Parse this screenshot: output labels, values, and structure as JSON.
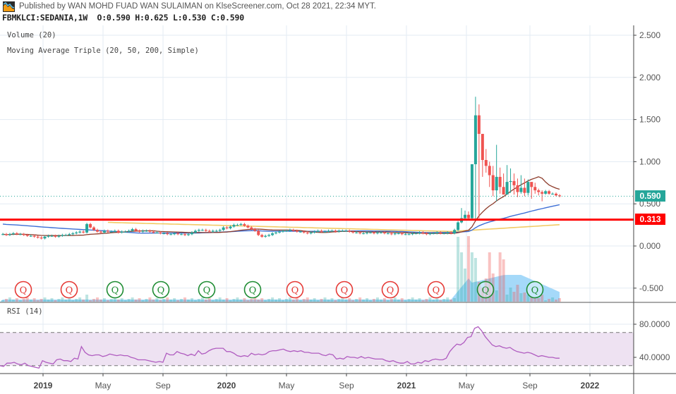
{
  "header": {
    "publisher_text": "Published by WAN MOHD FUAD WAN SULAIMAN on KlseScreener.com, Oct 28 2021, 22:34 MYT.",
    "symbol": "FBMKLCI:SEDANIA,1W",
    "ohlc": "O:0.590 H:0.625 L:0.530 C:0.590"
  },
  "legend": {
    "volume": "Volume (20)",
    "moving_average": "Moving Average Triple (20, 50, 200, Simple)",
    "rsi": "RSI (14)"
  },
  "price_axis": {
    "ticks": [
      "2.500",
      "2.000",
      "1.500",
      "1.000",
      "0.500",
      "0.000",
      "-0.500"
    ],
    "last_price_tag": "0.590",
    "support_tag": "0.313"
  },
  "rsi_axis": {
    "ticks": [
      "80.0000",
      "40.0000"
    ]
  },
  "time_axis": {
    "ticks": [
      {
        "label": "2019",
        "year": true
      },
      {
        "label": "May",
        "year": false
      },
      {
        "label": "Sep",
        "year": false
      },
      {
        "label": "2020",
        "year": true
      },
      {
        "label": "May",
        "year": false
      },
      {
        "label": "Sep",
        "year": false
      },
      {
        "label": "2021",
        "year": true
      },
      {
        "label": "May",
        "year": false
      },
      {
        "label": "Sep",
        "year": false
      },
      {
        "label": "2022",
        "year": true
      }
    ]
  },
  "earnings_markers": [
    {
      "label": "Q",
      "type": "negative"
    },
    {
      "label": "Q",
      "type": "negative"
    },
    {
      "label": "Q",
      "type": "positive"
    },
    {
      "label": "Q",
      "type": "positive"
    },
    {
      "label": "Q",
      "type": "positive"
    },
    {
      "label": "Q",
      "type": "positive"
    },
    {
      "label": "Q",
      "type": "negative"
    },
    {
      "label": "Q",
      "type": "negative"
    },
    {
      "label": "Q",
      "type": "negative"
    },
    {
      "label": "Q",
      "type": "negative"
    },
    {
      "label": "Q",
      "type": "positive"
    },
    {
      "label": "Q",
      "type": "positive"
    }
  ],
  "colors": {
    "up": "#26a69a",
    "down": "#ef5350",
    "ma20": "#8d3b2a",
    "ma50": "#3d6fd6",
    "ma200": "#f0c24a",
    "support_line": "#ff0000",
    "rsi_line": "#b05cc0",
    "rsi_band": "#eee2f2",
    "grid": "#e3ebf3",
    "last_price": "#26a69a",
    "volume_ma_area": "#8fd0f7"
  },
  "chart_data": [
    {
      "type": "candlestick",
      "title": "FBMKLCI:SEDANIA,1W",
      "timeframe": "1W",
      "last_bar": {
        "open": 0.59,
        "high": 0.625,
        "low": 0.53,
        "close": 0.59
      },
      "ylim": [
        -0.65,
        2.6
      ],
      "y_ticks": [
        2.5,
        2.0,
        1.5,
        1.0,
        0.5,
        0.0,
        -0.5
      ],
      "x_ticks": [
        "2019",
        "May",
        "Sep",
        "2020",
        "May",
        "Sep",
        "2021",
        "May",
        "Sep",
        "2022"
      ],
      "horizontal_lines": [
        {
          "value": 0.313,
          "label": "0.313",
          "color": "#ff0000",
          "note": "support/resistance line"
        },
        {
          "value": 0.59,
          "label": "0.590",
          "color": "#26a69a",
          "style": "dotted",
          "note": "last price"
        }
      ],
      "price_series_close": [
        0.14,
        0.13,
        0.14,
        0.15,
        0.14,
        0.14,
        0.13,
        0.12,
        0.12,
        0.11,
        0.1,
        0.09,
        0.11,
        0.12,
        0.12,
        0.11,
        0.12,
        0.13,
        0.13,
        0.14,
        0.15,
        0.16,
        0.17,
        0.16,
        0.26,
        0.22,
        0.19,
        0.17,
        0.16,
        0.18,
        0.17,
        0.17,
        0.18,
        0.16,
        0.17,
        0.17,
        0.18,
        0.2,
        0.18,
        0.17,
        0.18,
        0.18,
        0.17,
        0.16,
        0.16,
        0.15,
        0.15,
        0.14,
        0.14,
        0.15,
        0.14,
        0.14,
        0.13,
        0.14,
        0.16,
        0.18,
        0.19,
        0.19,
        0.18,
        0.17,
        0.18,
        0.18,
        0.19,
        0.22,
        0.21,
        0.23,
        0.25,
        0.25,
        0.26,
        0.24,
        0.22,
        0.2,
        0.18,
        0.13,
        0.11,
        0.12,
        0.13,
        0.15,
        0.16,
        0.17,
        0.18,
        0.18,
        0.19,
        0.18,
        0.17,
        0.17,
        0.16,
        0.15,
        0.16,
        0.17,
        0.18,
        0.17,
        0.17,
        0.18,
        0.18,
        0.17,
        0.18,
        0.18,
        0.18,
        0.17,
        0.16,
        0.16,
        0.15,
        0.15,
        0.16,
        0.16,
        0.15,
        0.16,
        0.16,
        0.15,
        0.15,
        0.14,
        0.15,
        0.15,
        0.14,
        0.14,
        0.14,
        0.15,
        0.15,
        0.16,
        0.15,
        0.14,
        0.15,
        0.15,
        0.16,
        0.15,
        0.15,
        0.16,
        0.15,
        0.19,
        0.28,
        0.33,
        0.37,
        0.33,
        0.97,
        1.55,
        1.33,
        1.02,
        0.95,
        0.84,
        0.66,
        0.82,
        0.7,
        0.61,
        0.76,
        0.77,
        0.72,
        0.64,
        0.69,
        0.63,
        0.76,
        0.7,
        0.66,
        0.64,
        0.62,
        0.65,
        0.62,
        0.62,
        0.6,
        0.59
      ],
      "moving_averages": [
        {
          "name": "MA 20",
          "color": "#8d3b2a",
          "last_value": 0.7,
          "peak_value": 0.82
        },
        {
          "name": "MA 50",
          "color": "#3d6fd6",
          "last_value": 0.45
        },
        {
          "name": "MA 200",
          "color": "#f0c24a",
          "last_value": 0.24
        }
      ],
      "notable": {
        "all_time_high_wick": 1.77,
        "spike_period": "May 2021"
      }
    },
    {
      "type": "bar",
      "title": "Volume (20)",
      "note": "volume histogram with 20-period MA area; spike around May 2021"
    },
    {
      "type": "line",
      "title": "RSI (14)",
      "ylim": [
        20,
        95
      ],
      "y_ticks": [
        80,
        40
      ],
      "bands": {
        "upper": 70,
        "lower": 30
      },
      "values": [
        30,
        29,
        33,
        33,
        34,
        32,
        31,
        33,
        30,
        29,
        28,
        27,
        36,
        34,
        33,
        32,
        37,
        38,
        36,
        36,
        35,
        39,
        38,
        53,
        46,
        43,
        42,
        43,
        43,
        41,
        42,
        44,
        43,
        42,
        43,
        42,
        42,
        40,
        39,
        37,
        37,
        37,
        36,
        35,
        34,
        35,
        34,
        45,
        43,
        43,
        47,
        45,
        44,
        42,
        44,
        42,
        48,
        44,
        45,
        48,
        50,
        51,
        51,
        51,
        47,
        47,
        45,
        42,
        41,
        42,
        41,
        45,
        43,
        44,
        43,
        44,
        47,
        48,
        48,
        49,
        50,
        48,
        47,
        48,
        47,
        48,
        46,
        46,
        45,
        45,
        45,
        43,
        42,
        44,
        43,
        38,
        39,
        38,
        41,
        40,
        40,
        39,
        41,
        39,
        40,
        39,
        38,
        38,
        38,
        36,
        35,
        36,
        34,
        33,
        33,
        35,
        32,
        32,
        34,
        33,
        36,
        35,
        37,
        38,
        37,
        37,
        39,
        47,
        52,
        56,
        55,
        58,
        64,
        65,
        75,
        77,
        72,
        65,
        60,
        55,
        53,
        54,
        52,
        51,
        52,
        49,
        47,
        46,
        45,
        46,
        45,
        43,
        41,
        42,
        41,
        40,
        40,
        39,
        39
      ]
    }
  ]
}
